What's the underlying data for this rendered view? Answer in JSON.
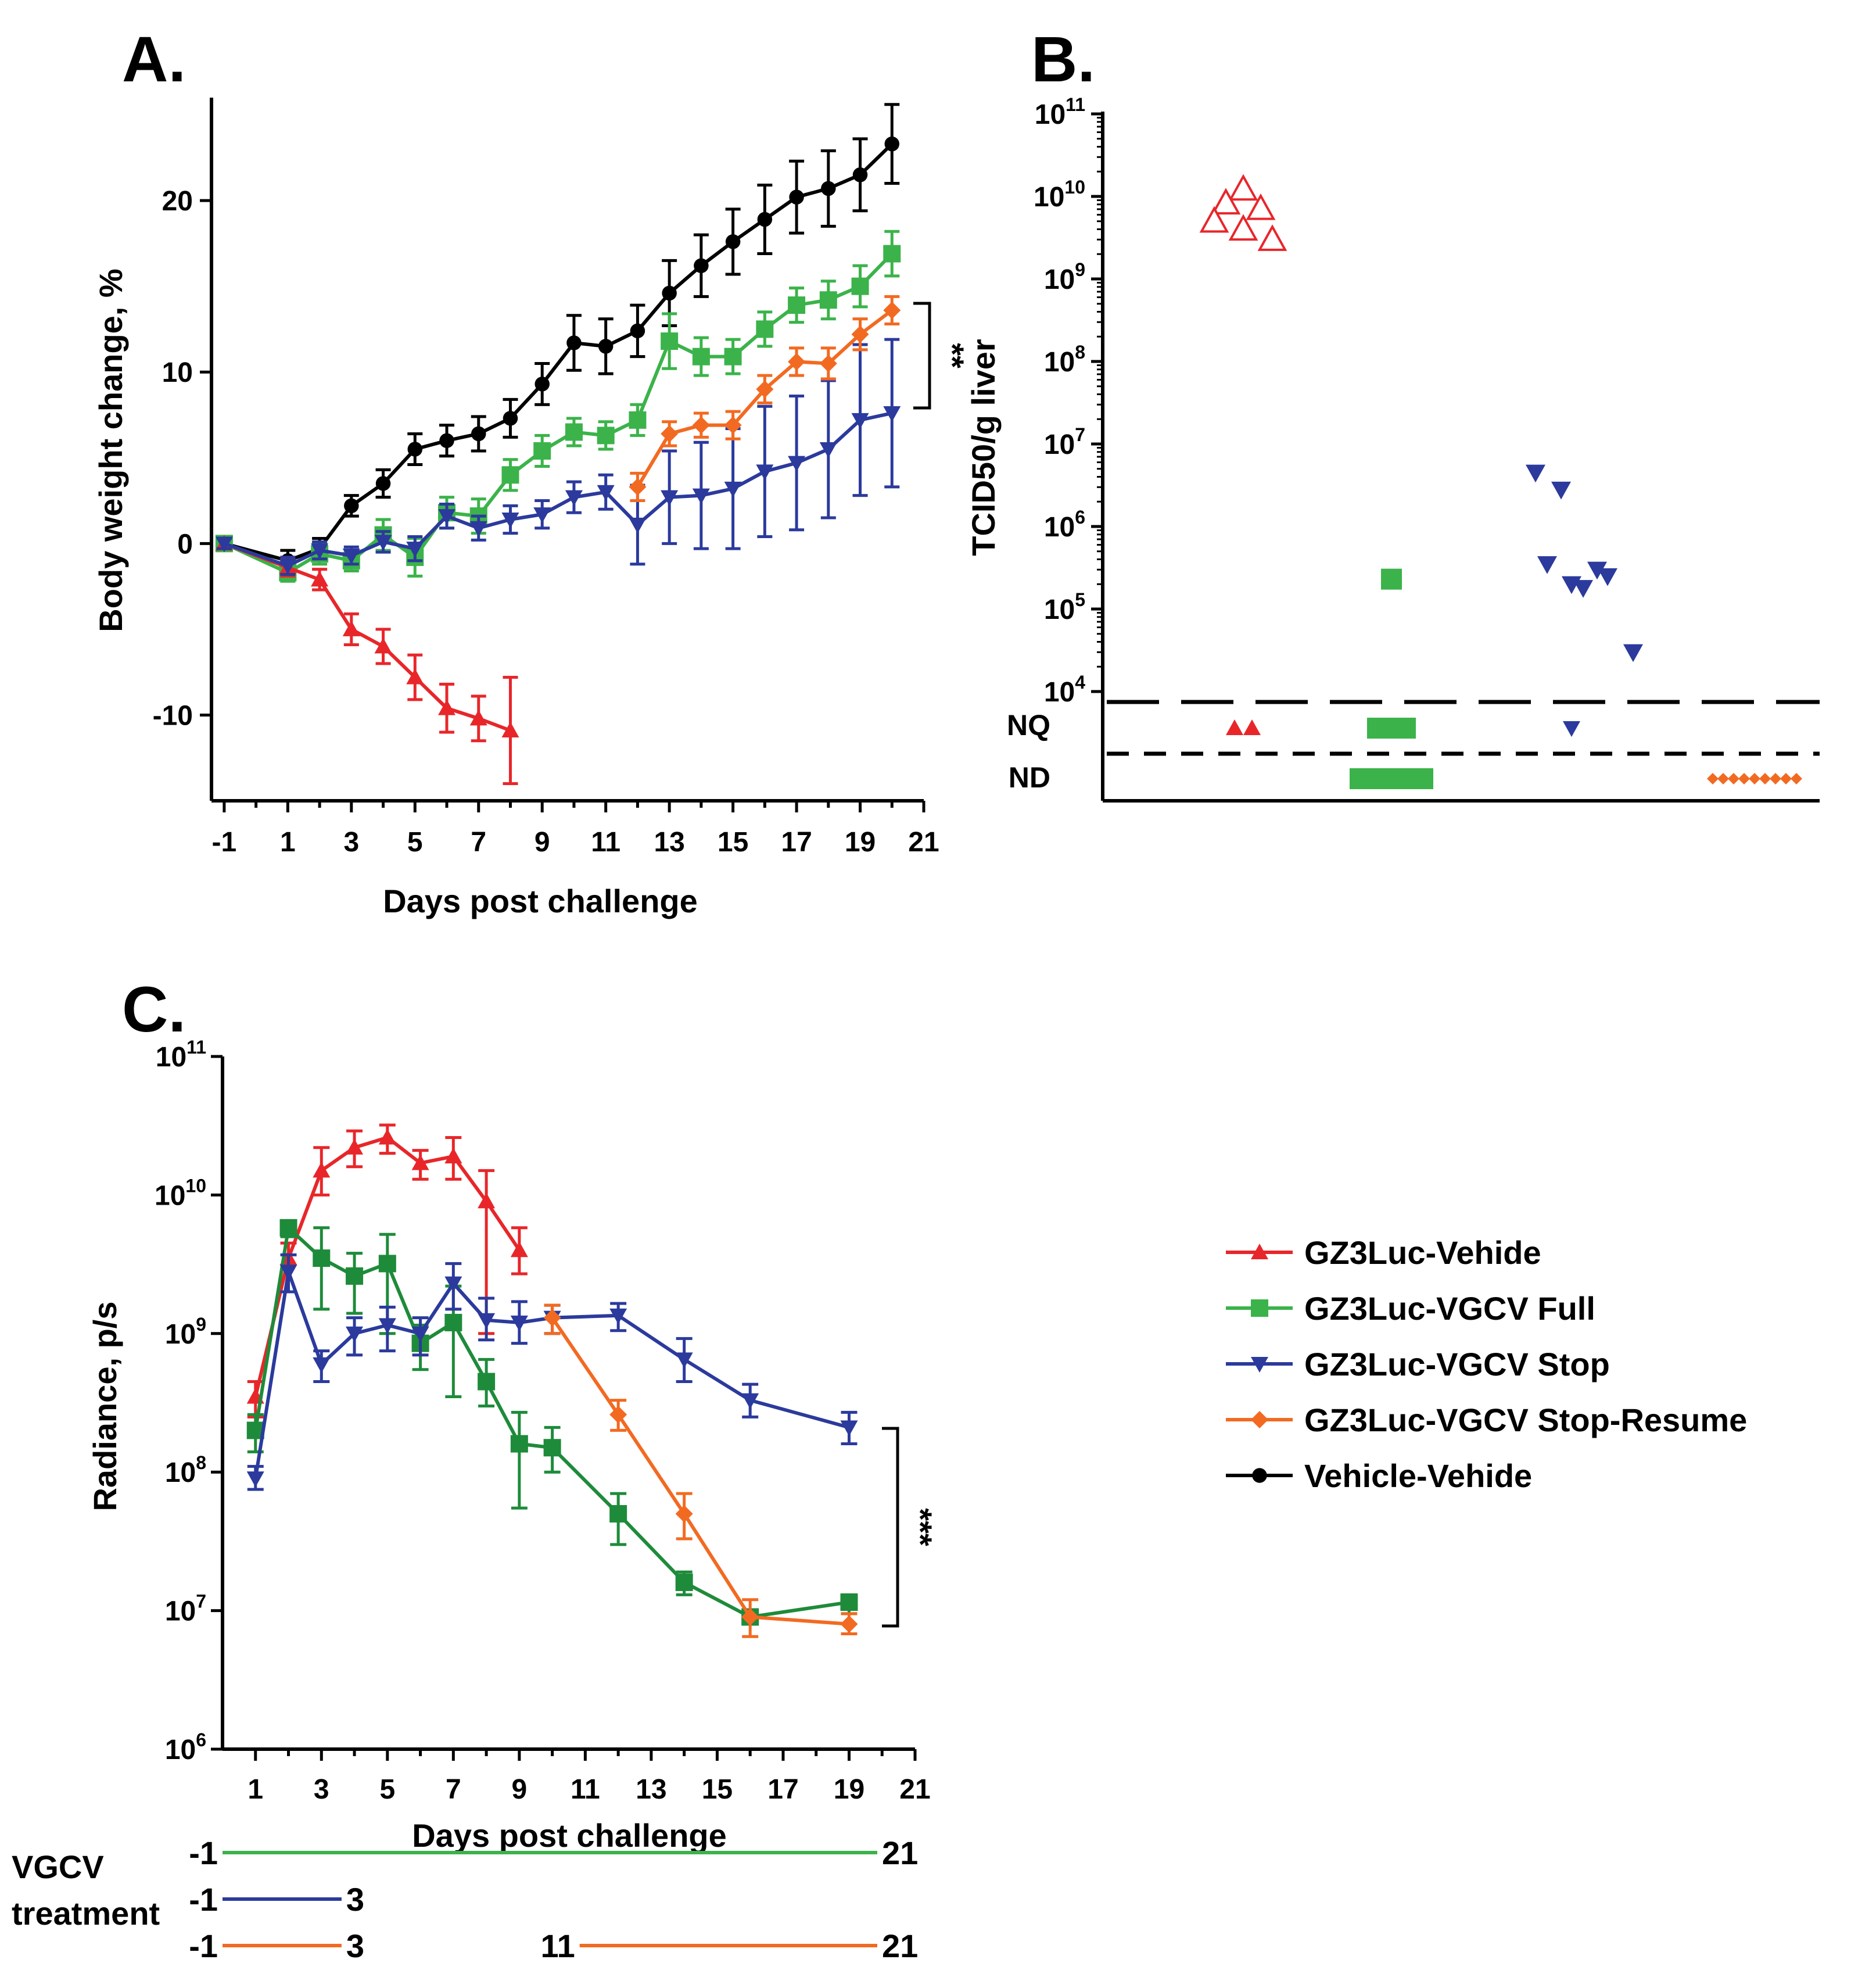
{
  "colors": {
    "vehide_red": "#e8262a",
    "full_green": "#3bb34a",
    "full_green_dark": "#1e8b3a",
    "stop_blue": "#2b3a9c",
    "resume_orange": "#f26a21",
    "vehicle_black": "#000000"
  },
  "legend": {
    "items": [
      {
        "label": "GZ3Luc-Vehide",
        "color": "#e8262a",
        "marker": "triangle-up"
      },
      {
        "label": "GZ3Luc-VGCV Full",
        "color": "#3bb34a",
        "marker": "square"
      },
      {
        "label": "GZ3Luc-VGCV Stop",
        "color": "#2b3a9c",
        "marker": "triangle-down"
      },
      {
        "label": "GZ3Luc-VGCV Stop-Resume",
        "color": "#f26a21",
        "marker": "diamond"
      },
      {
        "label": "Vehicle-Vehide",
        "color": "#000000",
        "marker": "circle"
      }
    ]
  },
  "vgcv": {
    "label_line1": "VGCV",
    "label_line2": "treatment",
    "bars": [
      {
        "color": "#3bb34a",
        "segments": [
          {
            "start": "-1",
            "end": "21"
          }
        ]
      },
      {
        "color": "#2b3a9c",
        "segments": [
          {
            "start": "-1",
            "end": "3"
          }
        ]
      },
      {
        "color": "#f26a21",
        "segments": [
          {
            "start": "-1",
            "end": "3"
          },
          {
            "start": "11",
            "end": "21"
          }
        ]
      }
    ]
  },
  "chart_data": [
    {
      "panel": "A.",
      "type": "line",
      "xlabel": "Days post challenge",
      "ylabel": "Body weight change, %",
      "xlim": [
        -1.4,
        21
      ],
      "ylim": [
        -15,
        26
      ],
      "xticks": [
        "-1",
        "1",
        "3",
        "5",
        "7",
        "9",
        "11",
        "13",
        "15",
        "17",
        "19",
        "21"
      ],
      "yticks": [
        "-10",
        "0",
        "10",
        "20"
      ],
      "significance": "**",
      "series": [
        {
          "name": "Vehicle-Vehide",
          "color": "#000000",
          "marker": "circle",
          "x": [
            -1,
            1,
            2,
            3,
            4,
            5,
            6,
            7,
            8,
            9,
            10,
            11,
            12,
            13,
            14,
            15,
            16,
            17,
            18,
            19,
            20
          ],
          "y": [
            0,
            -1.0,
            -0.3,
            2.2,
            3.5,
            5.5,
            6.0,
            6.4,
            7.3,
            9.3,
            11.7,
            11.5,
            12.4,
            14.6,
            16.2,
            17.6,
            18.9,
            20.2,
            20.7,
            21.5,
            23.3
          ],
          "err": [
            0.4,
            0.6,
            0.6,
            0.6,
            0.8,
            0.9,
            0.9,
            1.0,
            1.1,
            1.2,
            1.6,
            1.6,
            1.5,
            1.9,
            1.8,
            1.9,
            2.0,
            2.1,
            2.2,
            2.1,
            2.3
          ]
        },
        {
          "name": "GZ3Luc-VGCV Full",
          "color": "#3bb34a",
          "marker": "square",
          "x": [
            -1,
            1,
            2,
            3,
            4,
            5,
            6,
            7,
            8,
            9,
            10,
            11,
            12,
            13,
            14,
            15,
            16,
            17,
            18,
            19,
            20
          ],
          "y": [
            0,
            -1.7,
            -0.6,
            -1.0,
            0.5,
            -0.8,
            1.8,
            1.6,
            4.0,
            5.4,
            6.5,
            6.3,
            7.2,
            11.8,
            10.9,
            10.9,
            12.5,
            13.9,
            14.2,
            15.0,
            16.9
          ],
          "err": [
            0.3,
            0.5,
            0.6,
            0.6,
            0.9,
            1.1,
            0.9,
            1.0,
            0.9,
            0.9,
            0.8,
            0.8,
            0.9,
            1.6,
            1.1,
            1.0,
            1.0,
            1.0,
            1.1,
            1.2,
            1.3
          ]
        },
        {
          "name": "GZ3Luc-Vehide",
          "color": "#e8262a",
          "marker": "triangle-up",
          "x": [
            -1,
            1,
            2,
            3,
            4,
            5,
            6,
            7,
            8
          ],
          "y": [
            0,
            -1.4,
            -2.1,
            -5.0,
            -6.0,
            -7.8,
            -9.6,
            -10.2,
            -10.9
          ],
          "err": [
            0.3,
            0.5,
            0.6,
            0.9,
            1.0,
            1.3,
            1.4,
            1.3,
            3.1
          ]
        },
        {
          "name": "GZ3Luc-VGCV Stop",
          "color": "#2b3a9c",
          "marker": "triangle-down",
          "x": [
            -1,
            1,
            2,
            3,
            4,
            5,
            6,
            7,
            8,
            9,
            10,
            11,
            12,
            13,
            14,
            15,
            16,
            17,
            18,
            19,
            20
          ],
          "y": [
            0,
            -1.3,
            -0.4,
            -0.7,
            0.1,
            -0.3,
            1.6,
            0.9,
            1.4,
            1.7,
            2.7,
            3.0,
            1.1,
            2.7,
            2.8,
            3.2,
            4.2,
            4.7,
            5.5,
            7.2,
            7.6
          ],
          "err": [
            0.3,
            0.5,
            0.5,
            0.5,
            0.6,
            0.7,
            0.7,
            0.7,
            0.8,
            0.8,
            0.9,
            1.0,
            2.3,
            2.7,
            3.1,
            3.5,
            3.8,
            3.9,
            4.0,
            4.4,
            4.3
          ]
        },
        {
          "name": "GZ3Luc-VGCV Stop-Resume",
          "color": "#f26a21",
          "marker": "diamond",
          "x": [
            12,
            13,
            14,
            15,
            16,
            17,
            18,
            19,
            20
          ],
          "y": [
            3.3,
            6.4,
            6.9,
            6.9,
            9.0,
            10.6,
            10.5,
            12.2,
            13.6
          ],
          "err": [
            0.8,
            0.7,
            0.7,
            0.8,
            0.8,
            0.8,
            0.9,
            0.9,
            0.8
          ]
        }
      ]
    },
    {
      "panel": "B.",
      "type": "scatter",
      "ylabel": "TCID50/g liver",
      "yscale": "log",
      "ylim": [
        1000,
        100000000000
      ],
      "yticks": [
        {
          "mantissa": "10",
          "exponent": "11"
        },
        {
          "mantissa": "10",
          "exponent": "10"
        },
        {
          "mantissa": "10",
          "exponent": "9"
        },
        {
          "mantissa": "10",
          "exponent": "8"
        },
        {
          "mantissa": "10",
          "exponent": "7"
        },
        {
          "mantissa": "10",
          "exponent": "6"
        },
        {
          "mantissa": "10",
          "exponent": "5"
        },
        {
          "mantissa": "10",
          "exponent": "4"
        }
      ],
      "category_levels": [
        "NQ",
        "ND"
      ],
      "groups": [
        {
          "name": "GZ3Luc-Vehide",
          "color": "#e8262a",
          "marker": "triangle-up",
          "values": [
            9000000000,
            7000000000,
            6000000000,
            5000000000,
            4000000000,
            3000000000
          ],
          "NQ": 2,
          "ND": 0
        },
        {
          "name": "GZ3Luc-VGCV Full",
          "color": "#3bb34a",
          "marker": "square",
          "values": [
            230000
          ],
          "NQ": 5,
          "ND": 10
        },
        {
          "name": "GZ3Luc-VGCV Stop",
          "color": "#2b3a9c",
          "marker": "triangle-down",
          "values": [
            4500000,
            2800000,
            300000,
            350000,
            250000,
            200000,
            180000,
            30000
          ],
          "NQ": 1,
          "ND": 0
        },
        {
          "name": "GZ3Luc-VGCV Stop-Resume",
          "color": "#f26a21",
          "marker": "diamond",
          "values": [],
          "NQ": 0,
          "ND": 9
        }
      ]
    },
    {
      "panel": "C.",
      "type": "line",
      "xlabel": "Days post challenge",
      "ylabel": "Radiance, p/s",
      "yscale": "log",
      "xlim": [
        0,
        21
      ],
      "ylim": [
        1000000,
        100000000000
      ],
      "xticks": [
        "1",
        "3",
        "5",
        "7",
        "9",
        "11",
        "13",
        "15",
        "17",
        "19",
        "21"
      ],
      "yticks": [
        {
          "mantissa": "10",
          "exponent": "11"
        },
        {
          "mantissa": "10",
          "exponent": "10"
        },
        {
          "mantissa": "10",
          "exponent": "9"
        },
        {
          "mantissa": "10",
          "exponent": "8"
        },
        {
          "mantissa": "10",
          "exponent": "7"
        },
        {
          "mantissa": "10",
          "exponent": "6"
        }
      ],
      "significance": "***",
      "series": [
        {
          "name": "GZ3Luc-Vehide",
          "color": "#e8262a",
          "marker": "triangle-up",
          "x": [
            1,
            2,
            3,
            4,
            5,
            6,
            7,
            8,
            9
          ],
          "y": [
            350000000,
            3500000000,
            15000000000,
            22000000000,
            26000000000,
            17000000000,
            19000000000,
            9000000000,
            4000000000
          ],
          "err_low": [
            250000000,
            2000000000,
            10000000000,
            16000000000,
            20000000000,
            13000000000,
            13000000000,
            1000000000,
            2700000000
          ],
          "err_high": [
            450000000,
            4500000000,
            22000000000,
            29000000000,
            32000000000,
            21000000000,
            26000000000,
            15000000000,
            5800000000
          ]
        },
        {
          "name": "GZ3Luc-VGCV Full",
          "color": "#1e8b3a",
          "marker": "square",
          "x": [
            1,
            2,
            3,
            4,
            5,
            6,
            7,
            8,
            9,
            10,
            12,
            14,
            16,
            19
          ],
          "y": [
            200000000,
            5800000000,
            3500000000,
            2600000000,
            3200000000,
            850000000,
            1200000000,
            450000000,
            160000000,
            150000000,
            50000000,
            16000000,
            9000000,
            11500000
          ],
          "err_low": [
            140000000,
            5000000000,
            1500000000,
            1400000000,
            1000000000,
            550000000,
            350000000,
            300000000,
            55000000,
            100000000,
            30000000,
            13000000,
            8000000,
            9500000
          ],
          "err_high": [
            260000000,
            6500000000,
            5800000000,
            3800000000,
            5200000000,
            1150000000,
            2200000000,
            650000000,
            270000000,
            210000000,
            70000000,
            19000000,
            10000000,
            13000000
          ]
        },
        {
          "name": "GZ3Luc-VGCV Stop",
          "color": "#2b3a9c",
          "marker": "triangle-down",
          "x": [
            1,
            2,
            3,
            4,
            5,
            6,
            7,
            8,
            9,
            10,
            12,
            14,
            16,
            19
          ],
          "y": [
            90000000,
            2800000000,
            600000000,
            1000000000,
            1150000000,
            1000000000,
            2300000000,
            1250000000,
            1200000000,
            1300000000,
            1350000000,
            650000000,
            330000000,
            210000000
          ],
          "err_low": [
            75000000,
            2000000000,
            450000000,
            700000000,
            750000000,
            700000000,
            1500000000,
            900000000,
            850000000,
            1000000000,
            1050000000,
            450000000,
            250000000,
            160000000
          ],
          "err_high": [
            110000000,
            3700000000,
            750000000,
            1300000000,
            1550000000,
            1300000000,
            3200000000,
            1800000000,
            1700000000,
            1600000000,
            1650000000,
            920000000,
            430000000,
            270000000
          ]
        },
        {
          "name": "GZ3Luc-VGCV Stop-Resume",
          "color": "#f26a21",
          "marker": "diamond",
          "x": [
            10,
            12,
            14,
            16,
            19
          ],
          "y": [
            1300000000,
            260000000,
            50000000,
            9000000,
            8000000
          ],
          "err_low": [
            1000000000,
            200000000,
            33000000,
            6500000,
            6800000
          ],
          "err_high": [
            1600000000,
            330000000,
            70000000,
            12000000,
            9500000
          ]
        }
      ]
    }
  ]
}
